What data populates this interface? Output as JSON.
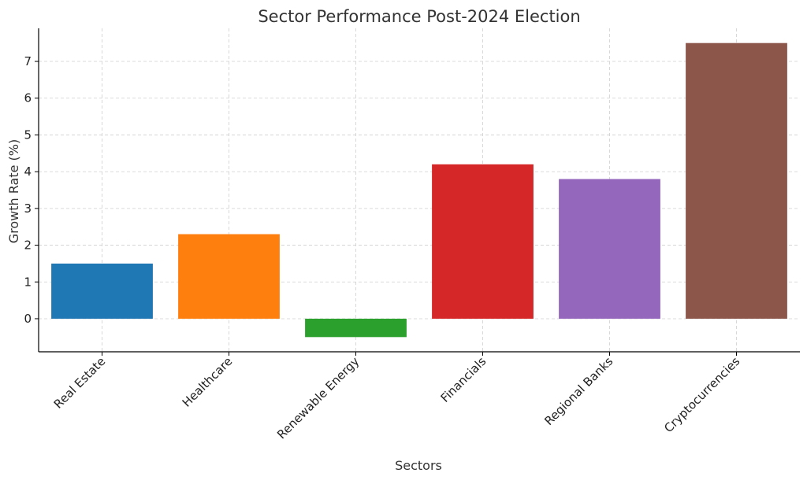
{
  "chart_data": {
    "type": "bar",
    "title": "Sector Performance Post-2024 Election",
    "xlabel": "Sectors",
    "ylabel": "Growth Rate (%)",
    "categories": [
      "Real Estate",
      "Healthcare",
      "Renewable Energy",
      "Financials",
      "Regional Banks",
      "Cryptocurrencies"
    ],
    "values": [
      1.5,
      2.3,
      -0.5,
      4.2,
      3.8,
      7.5
    ],
    "colors": [
      "#1f77b4",
      "#ff7f0e",
      "#2ca02c",
      "#d62728",
      "#9467bd",
      "#8c564b"
    ],
    "ylim": [
      -0.9,
      7.9
    ],
    "yticks": [
      0,
      1,
      2,
      3,
      4,
      5,
      6,
      7
    ],
    "grid": true,
    "legend": "none"
  }
}
